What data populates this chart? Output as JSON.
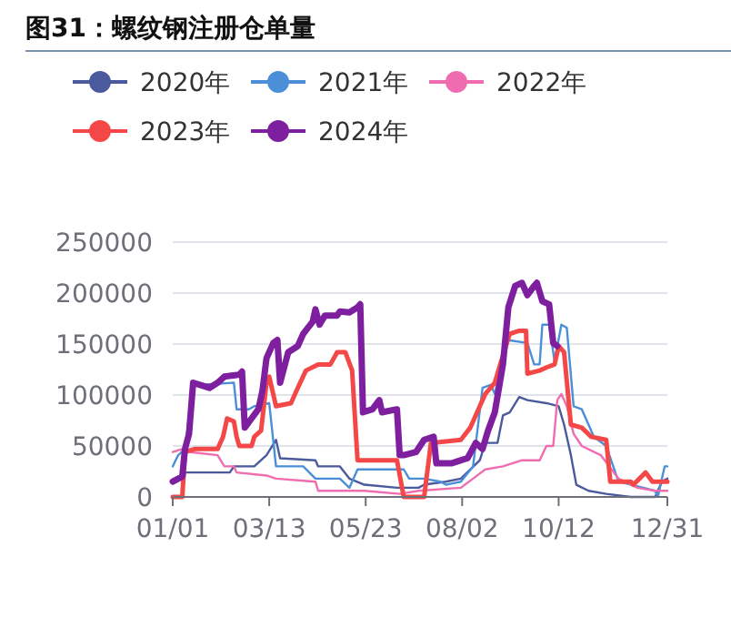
{
  "chart_data": {
    "type": "line",
    "title": "图31：螺纹钢注册仓单量",
    "xlim": [
      "--01-01",
      "--12-31"
    ],
    "xticks": [
      {
        "value": "--01-01",
        "label": "01/01"
      },
      {
        "value": "--03-13",
        "label": "03/13"
      },
      {
        "value": "--05-23",
        "label": "05/23"
      },
      {
        "value": "--08-02",
        "label": "08/02"
      },
      {
        "value": "--10-12",
        "label": "10/12"
      },
      {
        "value": "--12-31",
        "label": "12/31"
      }
    ],
    "ylim": [
      0,
      250000
    ],
    "yticks": [
      0,
      50000,
      100000,
      150000,
      200000,
      250000
    ],
    "grid": "y",
    "legend": "top left",
    "series": [
      {
        "name": "2020年",
        "color": "#4a5a9c",
        "x": [
          "--01-01",
          "--01-08",
          "--01-10",
          "--02-12",
          "--02-15",
          "--03-02",
          "--03-11",
          "--03-18",
          "--03-21",
          "--04-16",
          "--04-18",
          "--05-04",
          "--05-11",
          "--05-22",
          "--06-15",
          "--07-01",
          "--07-05",
          "--07-21",
          "--08-01",
          "--08-15",
          "--08-19",
          "--08-28",
          "--09-01",
          "--09-06",
          "--09-13",
          "--09-19",
          "--10-03",
          "--10-12",
          "--10-16",
          "--10-21",
          "--10-25",
          "--11-03",
          "--11-16",
          "--12-04",
          "--12-22",
          "--12-27",
          "--12-31"
        ],
        "values": [
          0,
          0,
          24000,
          24000,
          30000,
          30000,
          41000,
          56000,
          38000,
          36000,
          30000,
          30000,
          18000,
          12000,
          9000,
          9000,
          12000,
          15000,
          18000,
          36000,
          53000,
          53000,
          80000,
          83000,
          98000,
          95000,
          92000,
          89000,
          71000,
          41000,
          12000,
          6000,
          3000,
          0,
          0,
          15000,
          18000
        ]
      },
      {
        "name": "2021年",
        "color": "#4a8fd8",
        "x": [
          "--01-01",
          "--01-05",
          "--01-10",
          "--01-16",
          "--01-21",
          "--02-15",
          "--02-17",
          "--02-26",
          "--03-02",
          "--03-13",
          "--03-18",
          "--04-07",
          "--04-16",
          "--05-04",
          "--05-11",
          "--05-17",
          "--06-20",
          "--06-24",
          "--07-05",
          "--07-17",
          "--07-21",
          "--08-01",
          "--08-10",
          "--08-17",
          "--08-23",
          "--08-26",
          "--09-04",
          "--09-19",
          "--09-24",
          "--09-28",
          "--09-30",
          "--10-05",
          "--10-09",
          "--10-14",
          "--10-18",
          "--10-23",
          "--10-29",
          "--11-07",
          "--11-16",
          "--11-25",
          "--12-22",
          "--12-24",
          "--12-29",
          "--12-31"
        ],
        "values": [
          30000,
          41000,
          47000,
          112000,
          110000,
          112000,
          86000,
          86000,
          89000,
          92000,
          30000,
          30000,
          18000,
          18000,
          9000,
          27000,
          27000,
          18000,
          18000,
          15000,
          12000,
          15000,
          30000,
          107000,
          110000,
          101000,
          154000,
          151000,
          130000,
          130000,
          169000,
          169000,
          133000,
          169000,
          166000,
          89000,
          86000,
          59000,
          50000,
          15000,
          6000,
          0,
          30000,
          30000
        ]
      },
      {
        "name": "2022年",
        "color": "#f06cb0",
        "x": [
          "--01-01",
          "--01-08",
          "--01-14",
          "--02-03",
          "--02-08",
          "--02-15",
          "--02-17",
          "--03-11",
          "--03-18",
          "--04-16",
          "--04-18",
          "--05-22",
          "--06-17",
          "--07-01",
          "--08-01",
          "--08-10",
          "--08-19",
          "--09-01",
          "--09-15",
          "--09-28",
          "--10-03",
          "--10-08",
          "--10-11",
          "--10-14",
          "--10-18",
          "--10-23",
          "--10-29",
          "--11-12",
          "--11-25",
          "--12-09",
          "--12-22",
          "--12-31"
        ],
        "values": [
          44000,
          47000,
          44000,
          41000,
          30000,
          30000,
          24000,
          21000,
          18000,
          15000,
          6000,
          6000,
          3000,
          6000,
          9000,
          18000,
          27000,
          30000,
          36000,
          36000,
          50000,
          50000,
          95000,
          101000,
          89000,
          62000,
          50000,
          41000,
          18000,
          9000,
          6000,
          6000
        ]
      },
      {
        "name": "2023年",
        "color": "#f44848",
        "x": [
          "--01-01",
          "--01-08",
          "--01-10",
          "--01-17",
          "--02-03",
          "--02-07",
          "--02-10",
          "--02-15",
          "--02-17",
          "--02-19",
          "--02-28",
          "--03-02",
          "--03-07",
          "--03-11",
          "--03-13",
          "--03-18",
          "--03-29",
          "--04-03",
          "--04-09",
          "--04-18",
          "--04-27",
          "--05-02",
          "--05-08",
          "--05-13",
          "--05-17",
          "--06-15",
          "--06-20",
          "--07-05",
          "--07-10",
          "--08-01",
          "--08-08",
          "--08-19",
          "--08-26",
          "--08-30",
          "--09-06",
          "--09-13",
          "--09-18",
          "--09-19",
          "--09-28",
          "--10-03",
          "--10-09",
          "--10-12",
          "--10-16",
          "--10-21",
          "--10-29",
          "--11-05",
          "--11-16",
          "--11-19",
          "--12-04",
          "--12-06",
          "--12-15",
          "--12-20",
          "--12-31"
        ],
        "values": [
          0,
          0,
          44000,
          47000,
          47000,
          59000,
          77000,
          74000,
          59000,
          50000,
          50000,
          59000,
          65000,
          112000,
          118000,
          89000,
          92000,
          107000,
          124000,
          130000,
          130000,
          142000,
          142000,
          124000,
          36000,
          36000,
          0,
          0,
          53000,
          56000,
          68000,
          101000,
          112000,
          130000,
          160000,
          163000,
          163000,
          121000,
          124000,
          127000,
          130000,
          148000,
          142000,
          71000,
          68000,
          59000,
          56000,
          15000,
          15000,
          12000,
          24000,
          15000,
          15000
        ]
      },
      {
        "name": "2024年",
        "color": "#7e1fa0",
        "x": [
          "--01-01",
          "--01-08",
          "--01-10",
          "--01-13",
          "--01-16",
          "--01-21",
          "--01-28",
          "--02-03",
          "--02-08",
          "--02-19",
          "--02-21",
          "--02-23",
          "--02-28",
          "--03-05",
          "--03-08",
          "--03-11",
          "--03-16",
          "--03-19",
          "--03-21",
          "--03-27",
          "--04-03",
          "--04-07",
          "--04-14",
          "--04-16",
          "--04-19",
          "--04-23",
          "--05-02",
          "--05-04",
          "--05-11",
          "--05-17",
          "--05-19",
          "--05-21",
          "--05-28",
          "--06-02",
          "--06-04",
          "--06-15",
          "--06-17",
          "--06-20",
          "--06-29",
          "--07-05",
          "--07-12",
          "--07-14",
          "--07-25",
          "--08-06",
          "--08-12",
          "--08-17",
          "--08-21",
          "--08-26",
          "--09-01",
          "--09-05",
          "--09-10",
          "--09-15",
          "--09-19",
          "--09-24",
          "--09-26",
          "--09-30",
          "--10-05",
          "--10-08",
          "--10-11"
        ],
        "values": [
          15000,
          20000,
          47000,
          62000,
          112000,
          110000,
          107000,
          112000,
          118000,
          120000,
          123000,
          68000,
          77000,
          86000,
          104000,
          136000,
          151000,
          154000,
          112000,
          142000,
          148000,
          160000,
          172000,
          184000,
          169000,
          178000,
          178000,
          182000,
          181000,
          186000,
          189000,
          83000,
          86000,
          95000,
          83000,
          86000,
          41000,
          41000,
          44000,
          56000,
          59000,
          33000,
          33000,
          38000,
          53000,
          47000,
          65000,
          83000,
          130000,
          186000,
          207000,
          210000,
          198000,
          207000,
          210000,
          192000,
          189000,
          151000,
          148000
        ]
      }
    ]
  }
}
